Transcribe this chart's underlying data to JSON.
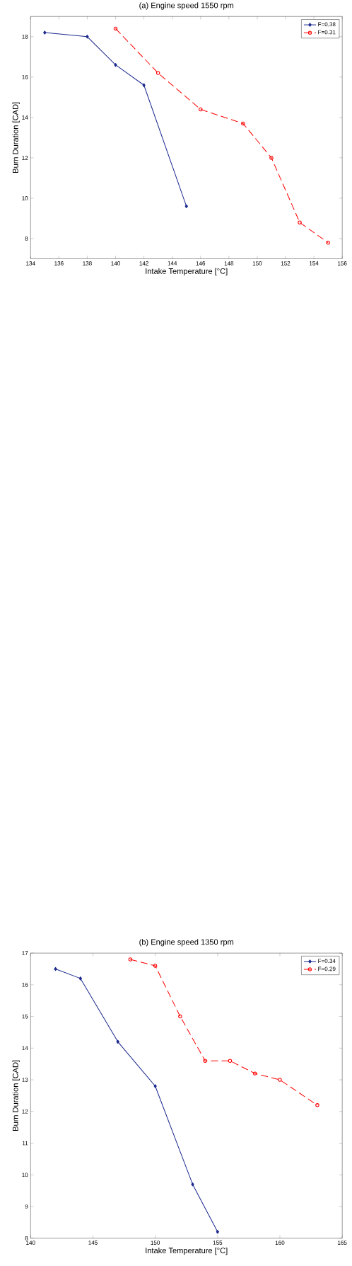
{
  "chart_data": [
    {
      "type": "line",
      "title": "(a) Engine speed 1550 rpm",
      "xlabel": "Intake Temperature [°C]",
      "ylabel": "Burn Duration [CAD]",
      "xlim": [
        134,
        156
      ],
      "ylim": [
        7,
        19
      ],
      "xticks": [
        134,
        136,
        138,
        140,
        142,
        144,
        146,
        148,
        150,
        152,
        154,
        156
      ],
      "yticks": [
        8,
        10,
        12,
        14,
        16,
        18
      ],
      "grid": false,
      "legend": "top right",
      "series": [
        {
          "name": "F=0.38",
          "color": "#1c2a8e",
          "marker": "diamond",
          "line_style": "solid",
          "x": [
            135,
            138,
            140,
            142,
            145
          ],
          "values": [
            18.2,
            18.0,
            16.6,
            15.6,
            9.6
          ]
        },
        {
          "name": "F=0.31",
          "color": "#ff0000",
          "marker": "circle",
          "line_style": "dashed",
          "x": [
            140,
            143,
            146,
            149,
            151,
            153,
            155
          ],
          "values": [
            18.4,
            16.2,
            14.4,
            13.7,
            12.0,
            8.8,
            7.8
          ]
        }
      ]
    },
    {
      "type": "line",
      "title": "(b) Engine speed 1350 rpm",
      "xlabel": "Intake Temperature [°C]",
      "ylabel": "Burn Duration [CAD]",
      "xlim": [
        140,
        165
      ],
      "ylim": [
        8,
        17
      ],
      "xticks": [
        140,
        145,
        150,
        155,
        160,
        165
      ],
      "yticks": [
        8,
        9,
        10,
        11,
        12,
        13,
        14,
        15,
        16,
        17
      ],
      "grid": false,
      "legend": "top right",
      "series": [
        {
          "name": "F=0.34",
          "color": "#1c2a8e",
          "marker": "diamond",
          "line_style": "solid",
          "x": [
            142,
            144,
            147,
            150,
            153,
            155
          ],
          "values": [
            16.5,
            16.2,
            14.2,
            12.8,
            9.7,
            8.2
          ]
        },
        {
          "name": "F=0.29",
          "color": "#ff0000",
          "marker": "circle",
          "line_style": "dashed",
          "x": [
            148,
            150,
            152,
            154,
            156,
            158,
            160,
            163
          ],
          "values": [
            16.8,
            16.6,
            15.0,
            13.6,
            13.6,
            13.2,
            13.0,
            12.2
          ]
        }
      ]
    }
  ]
}
